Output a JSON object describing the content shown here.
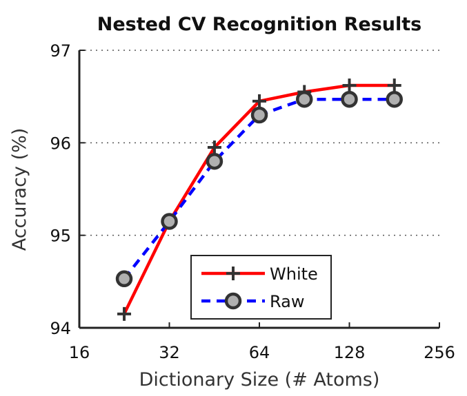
{
  "chart_data": {
    "type": "line",
    "title": "Nested CV Recognition Results",
    "xlabel": "Dictionary Size (# Atoms)",
    "ylabel": "Accuracy (%)",
    "xscale": "log2",
    "xlim": [
      16,
      256
    ],
    "ylim": [
      94,
      97
    ],
    "xticks": [
      16,
      32,
      64,
      128,
      256
    ],
    "xtick_labels": [
      "16",
      "32",
      "64",
      "128",
      "256"
    ],
    "yticks": [
      94,
      95,
      96,
      97
    ],
    "ytick_labels": [
      "94",
      "95",
      "96",
      "97"
    ],
    "grid": "y-dotted",
    "legend_position": "bottom-center",
    "series": [
      {
        "name": "White",
        "color": "#ff0000",
        "line_style": "solid",
        "marker": "plus",
        "x": [
          22.6,
          32,
          45.3,
          64,
          90.5,
          128,
          181
        ],
        "y": [
          94.15,
          95.15,
          95.95,
          96.45,
          96.55,
          96.62,
          96.62
        ]
      },
      {
        "name": "Raw",
        "color": "#0000ff",
        "line_style": "dashed",
        "marker": "circle",
        "x": [
          22.6,
          32,
          45.3,
          64,
          90.5,
          128,
          181
        ],
        "y": [
          94.53,
          95.15,
          95.8,
          96.3,
          96.47,
          96.47,
          96.47
        ]
      }
    ]
  }
}
